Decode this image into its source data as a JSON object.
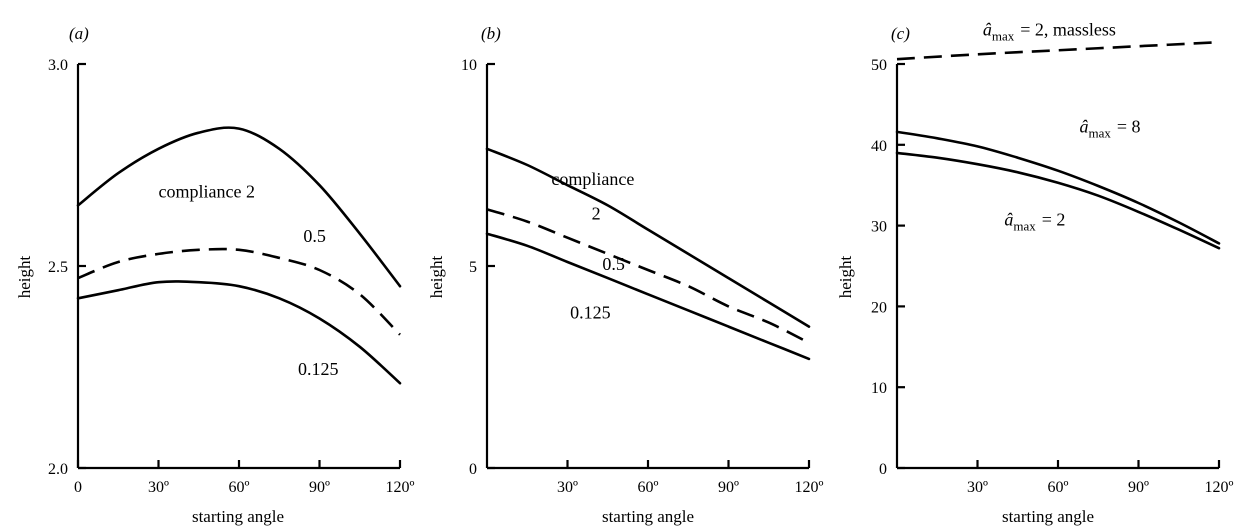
{
  "chart_data": [
    {
      "panel_label": "(a)",
      "type": "line",
      "xlabel": "starting angle",
      "ylabel": "height",
      "xlim": [
        0,
        120
      ],
      "ylim": [
        2.0,
        3.0
      ],
      "xticks": [
        0,
        30,
        60,
        90,
        120
      ],
      "xtick_labels": [
        "0",
        "30º",
        "60º",
        "90º",
        "120º"
      ],
      "yticks": [
        2.0,
        2.5,
        3.0
      ],
      "ytick_labels": [
        "2.0",
        "2.5",
        "3.0"
      ],
      "series": [
        {
          "style": "solid",
          "x": [
            0,
            15,
            30,
            45,
            60,
            75,
            90,
            105,
            120
          ],
          "y": [
            2.65,
            2.73,
            2.79,
            2.83,
            2.84,
            2.79,
            2.7,
            2.58,
            2.45
          ]
        },
        {
          "style": "dashed",
          "x": [
            0,
            15,
            30,
            45,
            60,
            75,
            90,
            105,
            120
          ],
          "y": [
            2.47,
            2.51,
            2.53,
            2.54,
            2.54,
            2.52,
            2.49,
            2.43,
            2.33
          ]
        },
        {
          "style": "solid",
          "x": [
            0,
            15,
            30,
            45,
            60,
            75,
            90,
            105,
            120
          ],
          "y": [
            2.42,
            2.44,
            2.46,
            2.46,
            2.45,
            2.42,
            2.37,
            2.3,
            2.21
          ]
        }
      ],
      "annotations": [
        {
          "text": "compliance 2",
          "x": 30,
          "y": 2.67
        },
        {
          "text": "0.5",
          "x": 84,
          "y": 2.56
        },
        {
          "text": "0.125",
          "x": 82,
          "y": 2.23
        }
      ]
    },
    {
      "panel_label": "(b)",
      "type": "line",
      "xlabel": "starting angle",
      "ylabel": "height",
      "xlim": [
        0,
        120
      ],
      "ylim": [
        0,
        10
      ],
      "xticks": [
        30,
        60,
        90,
        120
      ],
      "xtick_labels": [
        "30º",
        "60º",
        "90º",
        "120º"
      ],
      "yticks": [
        0,
        5,
        10
      ],
      "ytick_labels": [
        "0",
        "5",
        "10"
      ],
      "series": [
        {
          "style": "solid",
          "x": [
            0,
            15,
            30,
            45,
            60,
            75,
            90,
            105,
            120
          ],
          "y": [
            7.9,
            7.5,
            7.0,
            6.5,
            5.9,
            5.3,
            4.7,
            4.1,
            3.5
          ]
        },
        {
          "style": "dashed",
          "x": [
            0,
            15,
            30,
            45,
            60,
            75,
            90,
            105,
            120
          ],
          "y": [
            6.4,
            6.1,
            5.7,
            5.3,
            4.9,
            4.5,
            4.0,
            3.6,
            3.1
          ]
        },
        {
          "style": "solid",
          "x": [
            0,
            15,
            30,
            45,
            60,
            75,
            90,
            105,
            120
          ],
          "y": [
            5.8,
            5.5,
            5.1,
            4.7,
            4.3,
            3.9,
            3.5,
            3.1,
            2.7
          ]
        }
      ],
      "annotations": [
        {
          "text": "compliance",
          "x": 24,
          "y": 7.0
        },
        {
          "text": "2",
          "x": 39,
          "y": 6.15
        },
        {
          "text": "0.5",
          "x": 43,
          "y": 4.9
        },
        {
          "text": "0.125",
          "x": 31,
          "y": 3.7
        }
      ]
    },
    {
      "panel_label": "(c)",
      "type": "line",
      "xlabel": "starting angle",
      "ylabel": "height",
      "xlim": [
        0,
        120
      ],
      "ylim": [
        0,
        50
      ],
      "xticks": [
        30,
        60,
        90,
        120
      ],
      "xtick_labels": [
        "30º",
        "60º",
        "90º",
        "120º"
      ],
      "yticks": [
        0,
        10,
        20,
        30,
        40,
        50
      ],
      "ytick_labels": [
        "0",
        "10",
        "20",
        "30",
        "40",
        "50"
      ],
      "series": [
        {
          "style": "dashed",
          "x": [
            0,
            30,
            60,
            90,
            120
          ],
          "y": [
            50.6,
            51.2,
            51.7,
            52.2,
            52.7
          ]
        },
        {
          "style": "solid",
          "x": [
            0,
            15,
            30,
            45,
            60,
            75,
            90,
            105,
            120
          ],
          "y": [
            41.6,
            40.8,
            39.8,
            38.4,
            36.8,
            34.9,
            32.8,
            30.4,
            27.8
          ]
        },
        {
          "style": "solid",
          "x": [
            0,
            15,
            30,
            45,
            60,
            75,
            90,
            105,
            120
          ],
          "y": [
            39.0,
            38.4,
            37.6,
            36.6,
            35.3,
            33.7,
            31.7,
            29.5,
            27.2
          ]
        }
      ],
      "annotations": [
        {
          "text": "â",
          "sub": "max",
          "tail": "= 2, massless",
          "x": 32,
          "y": 53.5
        },
        {
          "text": "â",
          "sub": "max",
          "tail": "= 8",
          "x": 68,
          "y": 41.5
        },
        {
          "text": "â",
          "sub": "max",
          "tail": "= 2",
          "x": 40,
          "y": 30.0
        }
      ]
    }
  ]
}
